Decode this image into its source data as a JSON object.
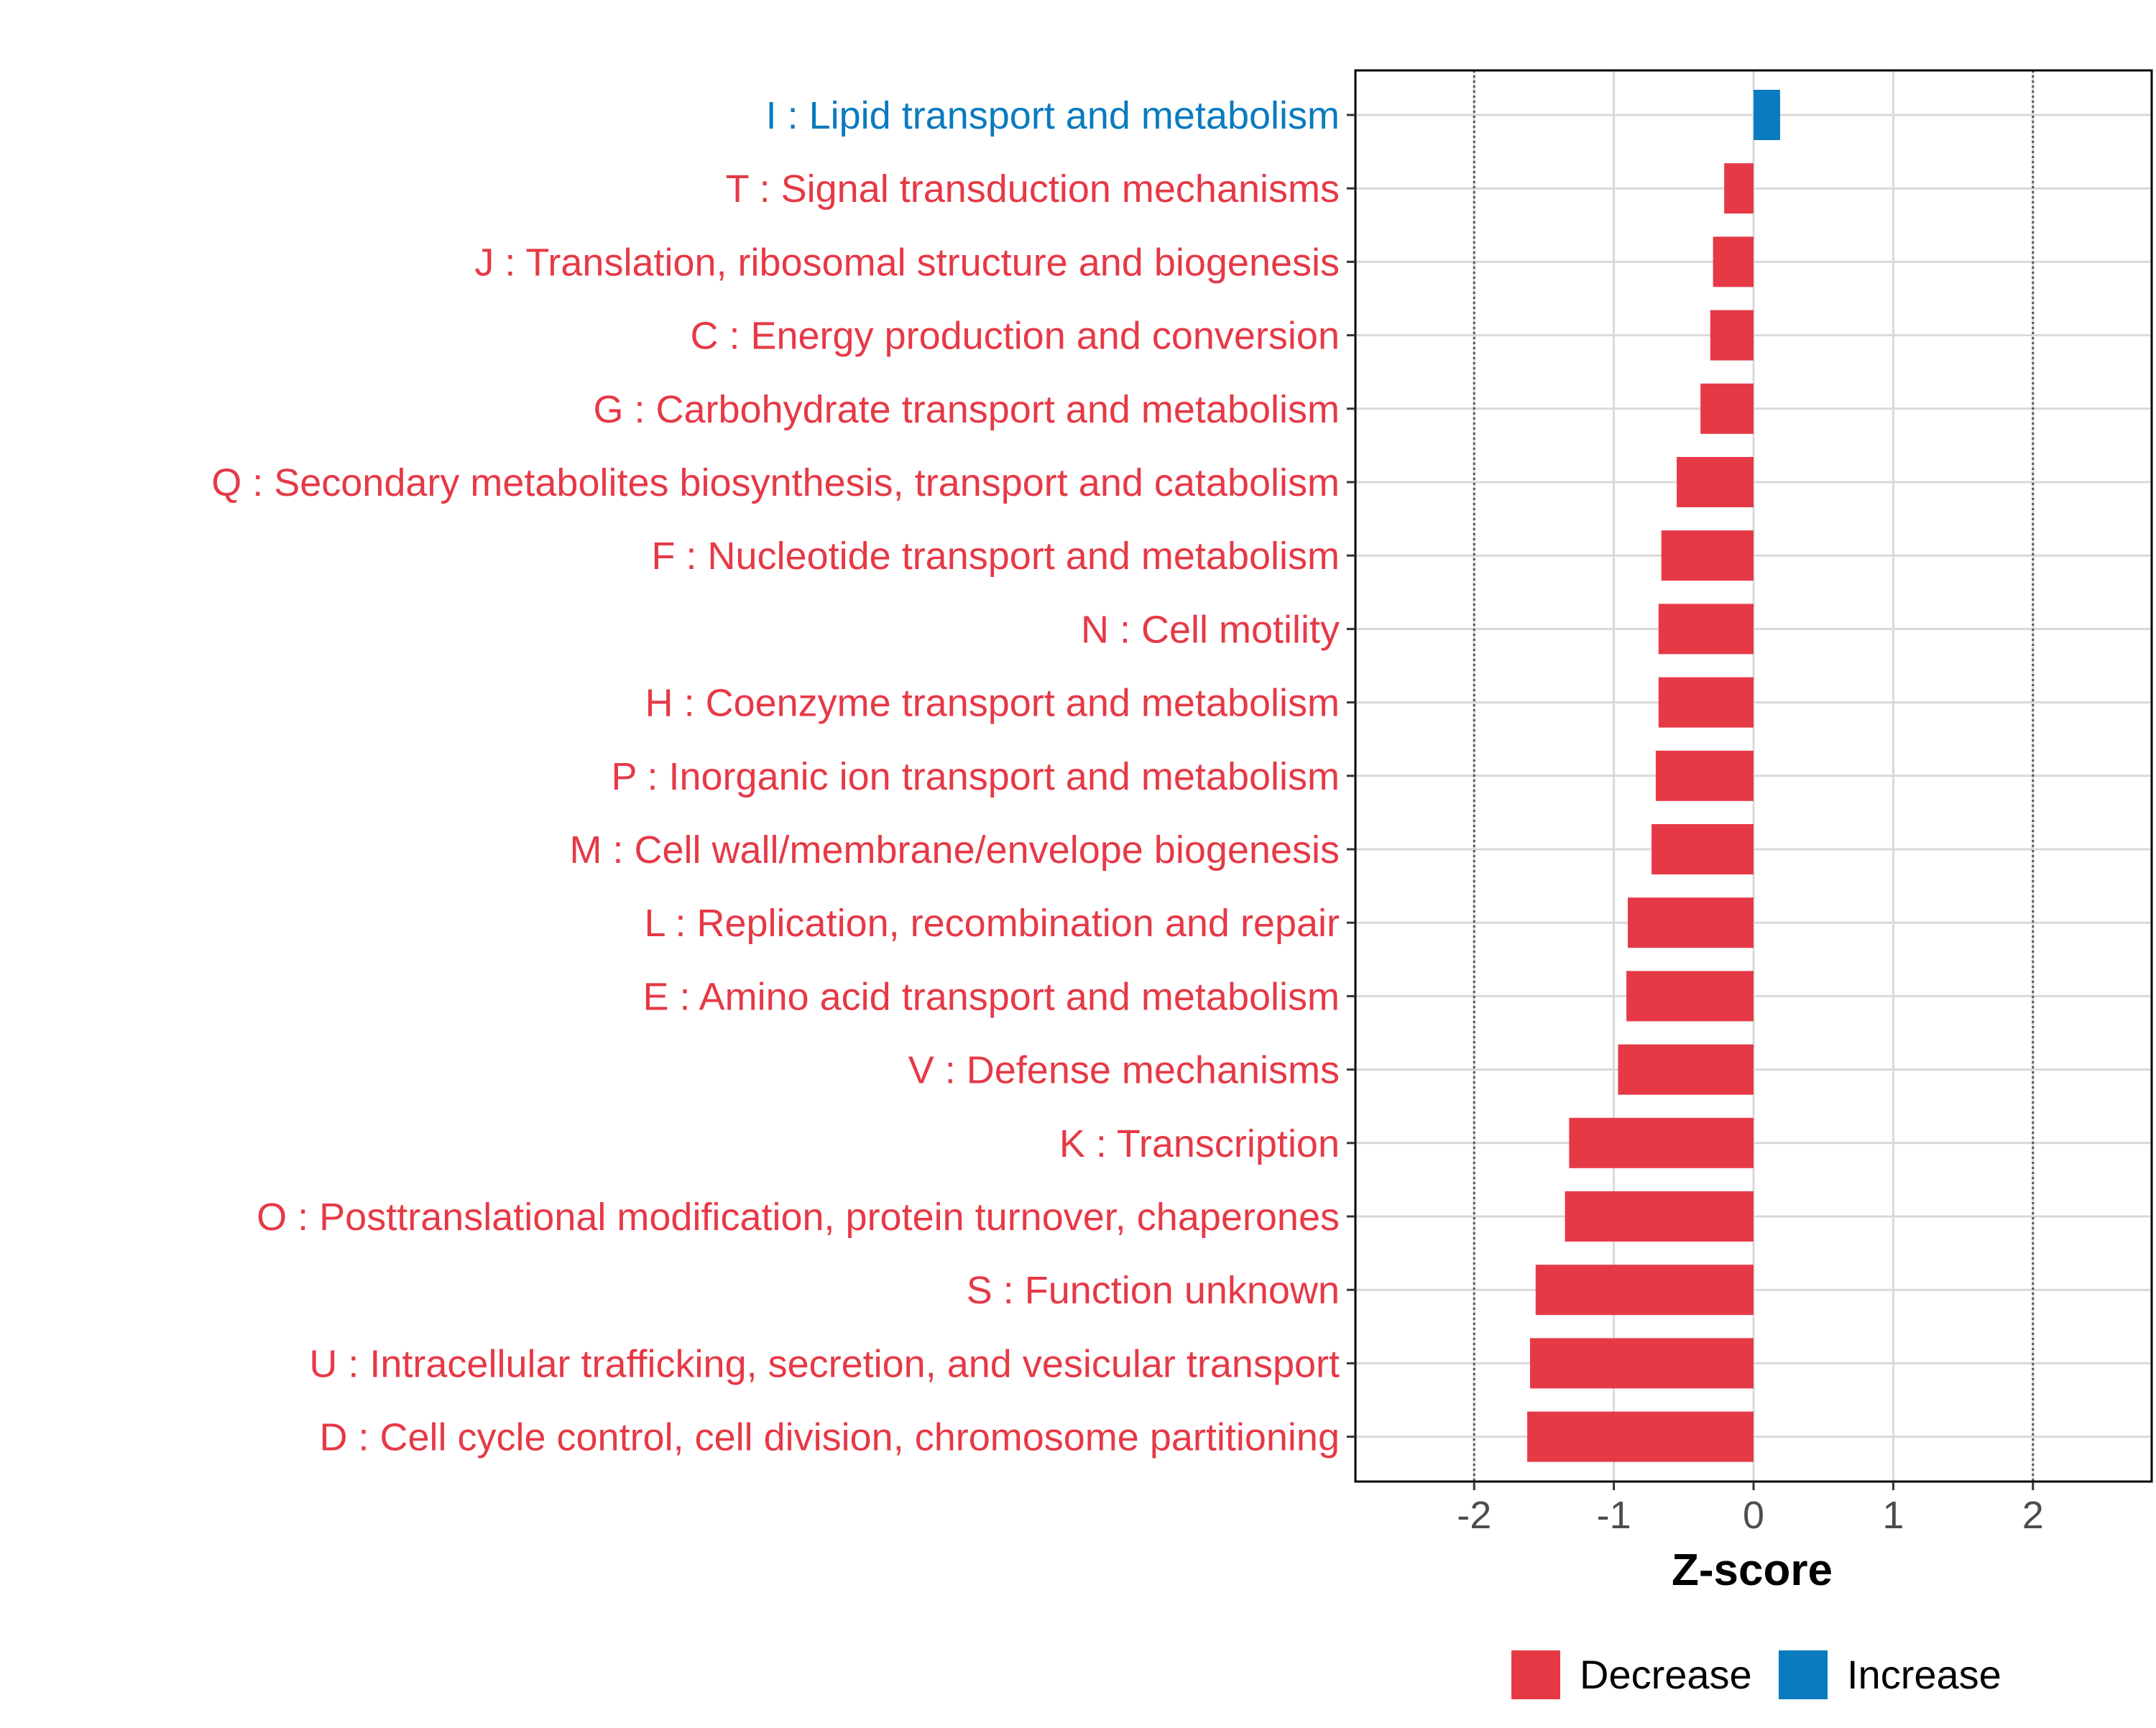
{
  "chart_data": {
    "type": "bar",
    "orientation": "horizontal",
    "title": "",
    "xlabel": "Z-score",
    "ylabel": "",
    "xlim": [
      -2.85,
      2.85
    ],
    "xticks": [
      -2,
      -1,
      0,
      1,
      2
    ],
    "xtick_labels": [
      "-2",
      "-1",
      "0",
      "1",
      "2"
    ],
    "reference_lines": [
      -2,
      2
    ],
    "grid": true,
    "colors": {
      "Decrease": "#E63946",
      "Increase": "#0A7BBF"
    },
    "categories": [
      "I : Lipid transport and metabolism",
      "T : Signal transduction mechanisms",
      "J : Translation, ribosomal structure and biogenesis",
      "C : Energy production and conversion",
      "G : Carbohydrate transport and metabolism",
      "Q : Secondary metabolites biosynthesis, transport and catabolism",
      "F : Nucleotide transport and metabolism",
      "N : Cell motility",
      "H : Coenzyme transport and metabolism",
      "P : Inorganic ion transport and metabolism",
      "M : Cell wall/membrane/envelope biogenesis",
      "L : Replication, recombination and repair",
      "E : Amino acid transport and metabolism",
      "V : Defense mechanisms",
      "K : Transcription",
      "O : Posttranslational modification, protein turnover, chaperones",
      "S : Function unknown",
      "U : Intracellular trafficking, secretion, and vesicular transport",
      "D : Cell cycle control, cell division, chromosome partitioning"
    ],
    "values": [
      0.19,
      -0.21,
      -0.29,
      -0.31,
      -0.38,
      -0.55,
      -0.66,
      -0.68,
      -0.68,
      -0.7,
      -0.73,
      -0.9,
      -0.91,
      -0.97,
      -1.32,
      -1.35,
      -1.56,
      -1.6,
      -1.62
    ],
    "groups": [
      "Increase",
      "Decrease",
      "Decrease",
      "Decrease",
      "Decrease",
      "Decrease",
      "Decrease",
      "Decrease",
      "Decrease",
      "Decrease",
      "Decrease",
      "Decrease",
      "Decrease",
      "Decrease",
      "Decrease",
      "Decrease",
      "Decrease",
      "Decrease",
      "Decrease"
    ],
    "legend": {
      "position": "bottom",
      "entries": [
        {
          "label": "Decrease",
          "color": "#E63946"
        },
        {
          "label": "Increase",
          "color": "#0A7BBF"
        }
      ]
    }
  }
}
